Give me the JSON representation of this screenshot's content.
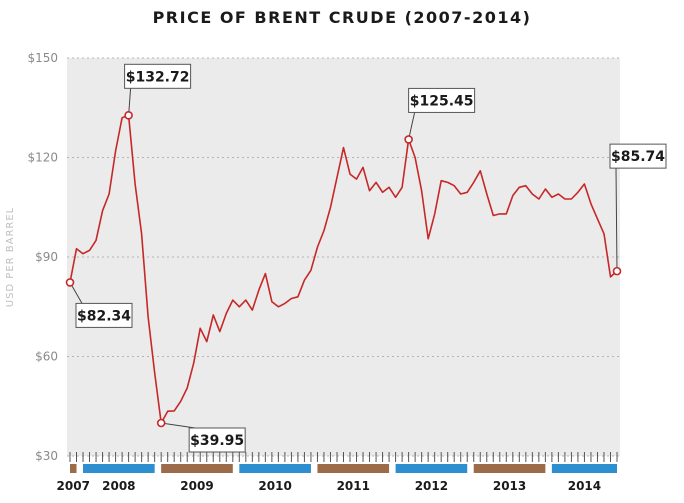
{
  "chart_data": {
    "type": "line",
    "title": "PRICE OF BRENT CRUDE (2007-2014)",
    "xlabel": "",
    "ylabel": "USD PER BARREL",
    "ylim": [
      30,
      150
    ],
    "y_ticks": [
      "$150",
      "$120",
      "$90",
      "$60",
      "$30"
    ],
    "y_tick_values": [
      150,
      120,
      90,
      60,
      30
    ],
    "grid": true,
    "line_color": "#c62828",
    "x_start": "2007-11",
    "x_end": "2014-11",
    "years": [
      {
        "label": "2007",
        "color": "#9c6b4a"
      },
      {
        "label": "2008",
        "color": "#2d8fd0"
      },
      {
        "label": "2009",
        "color": "#9c6b4a"
      },
      {
        "label": "2010",
        "color": "#2d8fd0"
      },
      {
        "label": "2011",
        "color": "#9c6b4a"
      },
      {
        "label": "2012",
        "color": "#2d8fd0"
      },
      {
        "label": "2013",
        "color": "#9c6b4a"
      },
      {
        "label": "2014",
        "color": "#2d8fd0"
      }
    ],
    "series": [
      {
        "x": [
          "2007-11",
          "2007-12",
          "2008-01",
          "2008-02",
          "2008-03",
          "2008-04",
          "2008-05",
          "2008-06",
          "2008-07",
          "2008-08",
          "2008-09",
          "2008-10",
          "2008-11",
          "2008-12",
          "2009-01",
          "2009-02",
          "2009-03",
          "2009-04",
          "2009-05",
          "2009-06",
          "2009-07",
          "2009-08",
          "2009-09",
          "2009-10",
          "2009-11",
          "2009-12",
          "2010-01",
          "2010-02",
          "2010-03",
          "2010-04",
          "2010-05",
          "2010-06",
          "2010-07",
          "2010-08",
          "2010-09",
          "2010-10",
          "2010-11",
          "2010-12",
          "2011-01",
          "2011-02",
          "2011-03",
          "2011-04",
          "2011-05",
          "2011-06",
          "2011-07",
          "2011-08",
          "2011-09",
          "2011-10",
          "2011-11",
          "2011-12",
          "2012-01",
          "2012-02",
          "2012-03",
          "2012-04",
          "2012-05",
          "2012-06",
          "2012-07",
          "2012-08",
          "2012-09",
          "2012-10",
          "2012-11",
          "2012-12",
          "2013-01",
          "2013-02",
          "2013-03",
          "2013-04",
          "2013-05",
          "2013-06",
          "2013-07",
          "2013-08",
          "2013-09",
          "2013-10",
          "2013-11",
          "2013-12",
          "2014-01",
          "2014-02",
          "2014-03",
          "2014-04",
          "2014-05",
          "2014-06",
          "2014-07",
          "2014-08",
          "2014-09",
          "2014-10",
          "2014-11"
        ],
        "values": [
          82.34,
          92.5,
          91,
          92,
          95,
          104,
          109,
          122,
          132,
          132.72,
          112,
          97,
          72,
          55,
          39.95,
          43.5,
          43.6,
          46.5,
          50.5,
          58,
          68.5,
          64.5,
          72.5,
          67.5,
          73,
          77,
          75,
          77,
          74,
          80,
          85,
          76.5,
          75,
          76,
          77.5,
          78,
          83,
          86,
          93,
          98,
          105,
          114,
          123,
          115,
          113.5,
          117,
          110,
          112.5,
          109.5,
          111,
          108,
          111,
          125.45,
          120,
          110,
          95.5,
          103,
          113,
          112.5,
          111.5,
          109,
          109.5,
          112.5,
          116,
          109,
          102.5,
          103,
          103,
          108.5,
          111,
          111.5,
          109,
          107.5,
          110.5,
          108,
          109,
          107.5,
          107.5,
          109.5,
          112,
          106,
          101.5,
          97,
          84,
          85.74
        ]
      }
    ],
    "annotations": [
      {
        "label": "$82.34",
        "x": "2007-11",
        "value": 82.34
      },
      {
        "label": "$132.72",
        "x": "2008-08",
        "value": 132.72
      },
      {
        "label": "$39.95",
        "x": "2009-01",
        "value": 39.95
      },
      {
        "label": "$125.45",
        "x": "2012-03",
        "value": 125.45
      },
      {
        "label": "$85.74",
        "x": "2014-11",
        "value": 85.74
      }
    ]
  }
}
